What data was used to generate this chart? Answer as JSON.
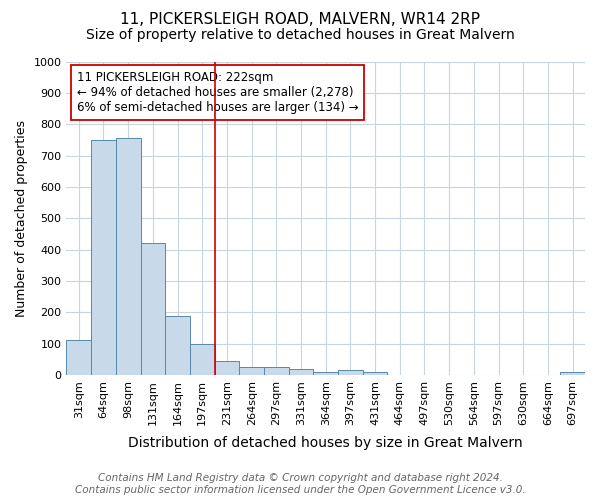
{
  "title": "11, PICKERSLEIGH ROAD, MALVERN, WR14 2RP",
  "subtitle": "Size of property relative to detached houses in Great Malvern",
  "xlabel": "Distribution of detached houses by size in Great Malvern",
  "ylabel": "Number of detached properties",
  "categories": [
    "31sqm",
    "64sqm",
    "98sqm",
    "131sqm",
    "164sqm",
    "197sqm",
    "231sqm",
    "264sqm",
    "297sqm",
    "331sqm",
    "364sqm",
    "397sqm",
    "431sqm",
    "464sqm",
    "497sqm",
    "530sqm",
    "564sqm",
    "597sqm",
    "630sqm",
    "664sqm",
    "697sqm"
  ],
  "values": [
    110,
    748,
    755,
    420,
    187,
    100,
    45,
    25,
    25,
    18,
    10,
    15,
    8,
    0,
    0,
    0,
    0,
    0,
    0,
    0,
    8
  ],
  "bar_color": "#c8d9ea",
  "bar_edge_color": "#5588aa",
  "bar_edge_width": 0.7,
  "property_line_x": 5.5,
  "property_line_color": "#cc0000",
  "annotation_text": "11 PICKERSLEIGH ROAD: 222sqm\n← 94% of detached houses are smaller (2,278)\n6% of semi-detached houses are larger (134) →",
  "annotation_box_color": "#ffffff",
  "annotation_box_edge_color": "#cc0000",
  "ylim": [
    0,
    1000
  ],
  "yticks": [
    0,
    100,
    200,
    300,
    400,
    500,
    600,
    700,
    800,
    900,
    1000
  ],
  "background_color": "#ffffff",
  "plot_background_color": "#ffffff",
  "grid_color": "#c8d4e0",
  "footer_text": "Contains HM Land Registry data © Crown copyright and database right 2024.\nContains public sector information licensed under the Open Government Licence v3.0.",
  "title_fontsize": 11,
  "subtitle_fontsize": 10,
  "xlabel_fontsize": 10,
  "ylabel_fontsize": 9,
  "tick_fontsize": 8,
  "footer_fontsize": 7.5,
  "annotation_fontsize": 8.5
}
